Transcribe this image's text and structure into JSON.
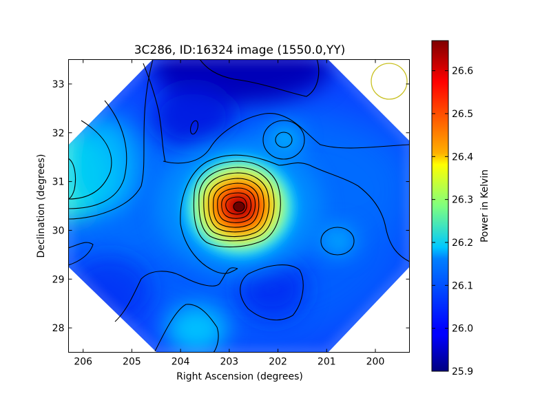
{
  "chart_data": [
    {
      "type": "heatmap",
      "title": "3C286, ID:16324 image (1550.0,YY)",
      "xlabel": "Right Ascension (degrees)",
      "ylabel": "Declination (degrees)",
      "xlim": [
        206.3,
        199.3
      ],
      "ylim": [
        27.5,
        33.5
      ],
      "x_direction": "decreasing",
      "xticks": [
        206,
        205,
        204,
        203,
        202,
        201,
        200
      ],
      "yticks": [
        28,
        29,
        30,
        31,
        32,
        33
      ],
      "grid": false,
      "colormap": "jet",
      "value_range": [
        25.9,
        26.67
      ],
      "peak": {
        "ra": 202.75,
        "dec": 30.5,
        "value": 26.67
      },
      "local_maxima": [
        {
          "ra": 206.2,
          "dec": 31.3,
          "value": 26.2
        },
        {
          "ra": 201.85,
          "dec": 31.87,
          "value": 26.15
        },
        {
          "ra": 200.8,
          "dec": 29.75,
          "value": 26.12
        },
        {
          "ra": 203.8,
          "dec": 28.0,
          "value": 26.15
        }
      ],
      "local_minima": [
        {
          "ra": 202.9,
          "dec": 33.3,
          "value": 25.9
        },
        {
          "ra": 203.72,
          "dec": 32.2,
          "value": 25.93
        }
      ],
      "beam_marker": {
        "ra": 199.75,
        "dec": 33.05,
        "color": "#c8c020"
      }
    },
    {
      "type": "colorbar",
      "label": "Power in Kelvin",
      "ticks": [
        26.6,
        26.5,
        26.4,
        26.3,
        26.2,
        26.1,
        26.0,
        25.9
      ],
      "range": [
        25.9,
        26.67
      ],
      "colormap": "jet"
    }
  ]
}
